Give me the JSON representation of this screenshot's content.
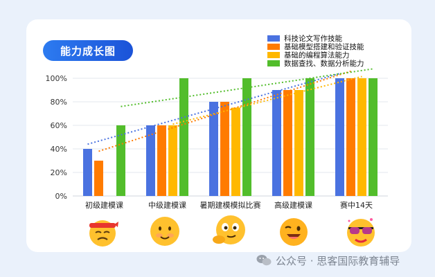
{
  "chart_data": {
    "type": "bar",
    "title": "能力成长图",
    "categories": [
      "初级建模课",
      "中级建模课",
      "暑期建模模拟比赛",
      "高级建模课",
      "赛中14天"
    ],
    "yticks": [
      "0%",
      "20%",
      "40%",
      "60%",
      "80%",
      "100%"
    ],
    "ylim": [
      0,
      100
    ],
    "legend_position": "top-right",
    "grid": true,
    "trendlines": true,
    "series": [
      {
        "name": "科技论文写作技能",
        "color": "#4a72e0",
        "values": [
          40,
          60,
          80,
          90,
          100
        ]
      },
      {
        "name": "基础模型搭建和验证技能",
        "color": "#ff7b00",
        "values": [
          30,
          60,
          80,
          90,
          100
        ]
      },
      {
        "name": "基础的编程算法能力",
        "color": "#ffb800",
        "values": [
          null,
          60,
          75,
          90,
          100
        ]
      },
      {
        "name": "数据查找、数据分析能力",
        "color": "#52bd2b",
        "values": [
          60,
          100,
          100,
          100,
          100
        ]
      }
    ]
  },
  "watermark": {
    "text": "公众号 · 思客国际教育辅导",
    "icon": "wechat-icon"
  },
  "emojis": [
    "headband-face-icon",
    "smiling-face-icon",
    "thinking-face-icon",
    "winking-face-icon",
    "sunglasses-face-icon"
  ]
}
